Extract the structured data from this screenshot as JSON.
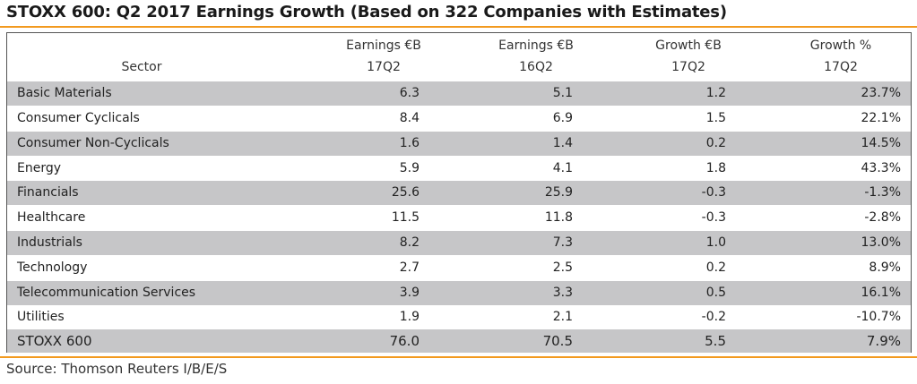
{
  "title": "STOXX 600: Q2 2017 Earnings Growth (Based on 322 Companies with Estimates)",
  "columns": {
    "sector": {
      "line1": "",
      "line2": "Sector"
    },
    "earnings_17q2": {
      "line1": "Earnings €B",
      "line2": "17Q2"
    },
    "earnings_16q2": {
      "line1": "Earnings €B",
      "line2": "16Q2"
    },
    "growth_eur": {
      "line1": "Growth €B",
      "line2": "17Q2"
    },
    "growth_pct": {
      "line1": "Growth %",
      "line2": "17Q2"
    }
  },
  "rows": [
    {
      "sector": "Basic Materials",
      "e17": "6.3",
      "e16": "5.1",
      "g": "1.2",
      "gp": "23.7%"
    },
    {
      "sector": "Consumer Cyclicals",
      "e17": "8.4",
      "e16": "6.9",
      "g": "1.5",
      "gp": "22.1%"
    },
    {
      "sector": "Consumer Non-Cyclicals",
      "e17": "1.6",
      "e16": "1.4",
      "g": "0.2",
      "gp": "14.5%"
    },
    {
      "sector": "Energy",
      "e17": "5.9",
      "e16": "4.1",
      "g": "1.8",
      "gp": "43.3%"
    },
    {
      "sector": "Financials",
      "e17": "25.6",
      "e16": "25.9",
      "g": "-0.3",
      "gp": "-1.3%"
    },
    {
      "sector": "Healthcare",
      "e17": "11.5",
      "e16": "11.8",
      "g": "-0.3",
      "gp": "-2.8%"
    },
    {
      "sector": "Industrials",
      "e17": "8.2",
      "e16": "7.3",
      "g": "1.0",
      "gp": "13.0%"
    },
    {
      "sector": "Technology",
      "e17": "2.7",
      "e16": "2.5",
      "g": "0.2",
      "gp": "8.9%"
    },
    {
      "sector": "Telecommunication Services",
      "e17": "3.9",
      "e16": "3.3",
      "g": "0.5",
      "gp": "16.1%"
    },
    {
      "sector": "Utilities",
      "e17": "1.9",
      "e16": "2.1",
      "g": "-0.2",
      "gp": "-10.7%"
    }
  ],
  "total": {
    "sector": "STOXX 600",
    "e17": "76.0",
    "e16": "70.5",
    "g": "5.5",
    "gp": "7.9%"
  },
  "source": "Source: Thomson Reuters I/B/E/S",
  "colors": {
    "accent_rule": "#f29a1f",
    "row_shade": "#c6c6c8",
    "border": "#555555"
  }
}
